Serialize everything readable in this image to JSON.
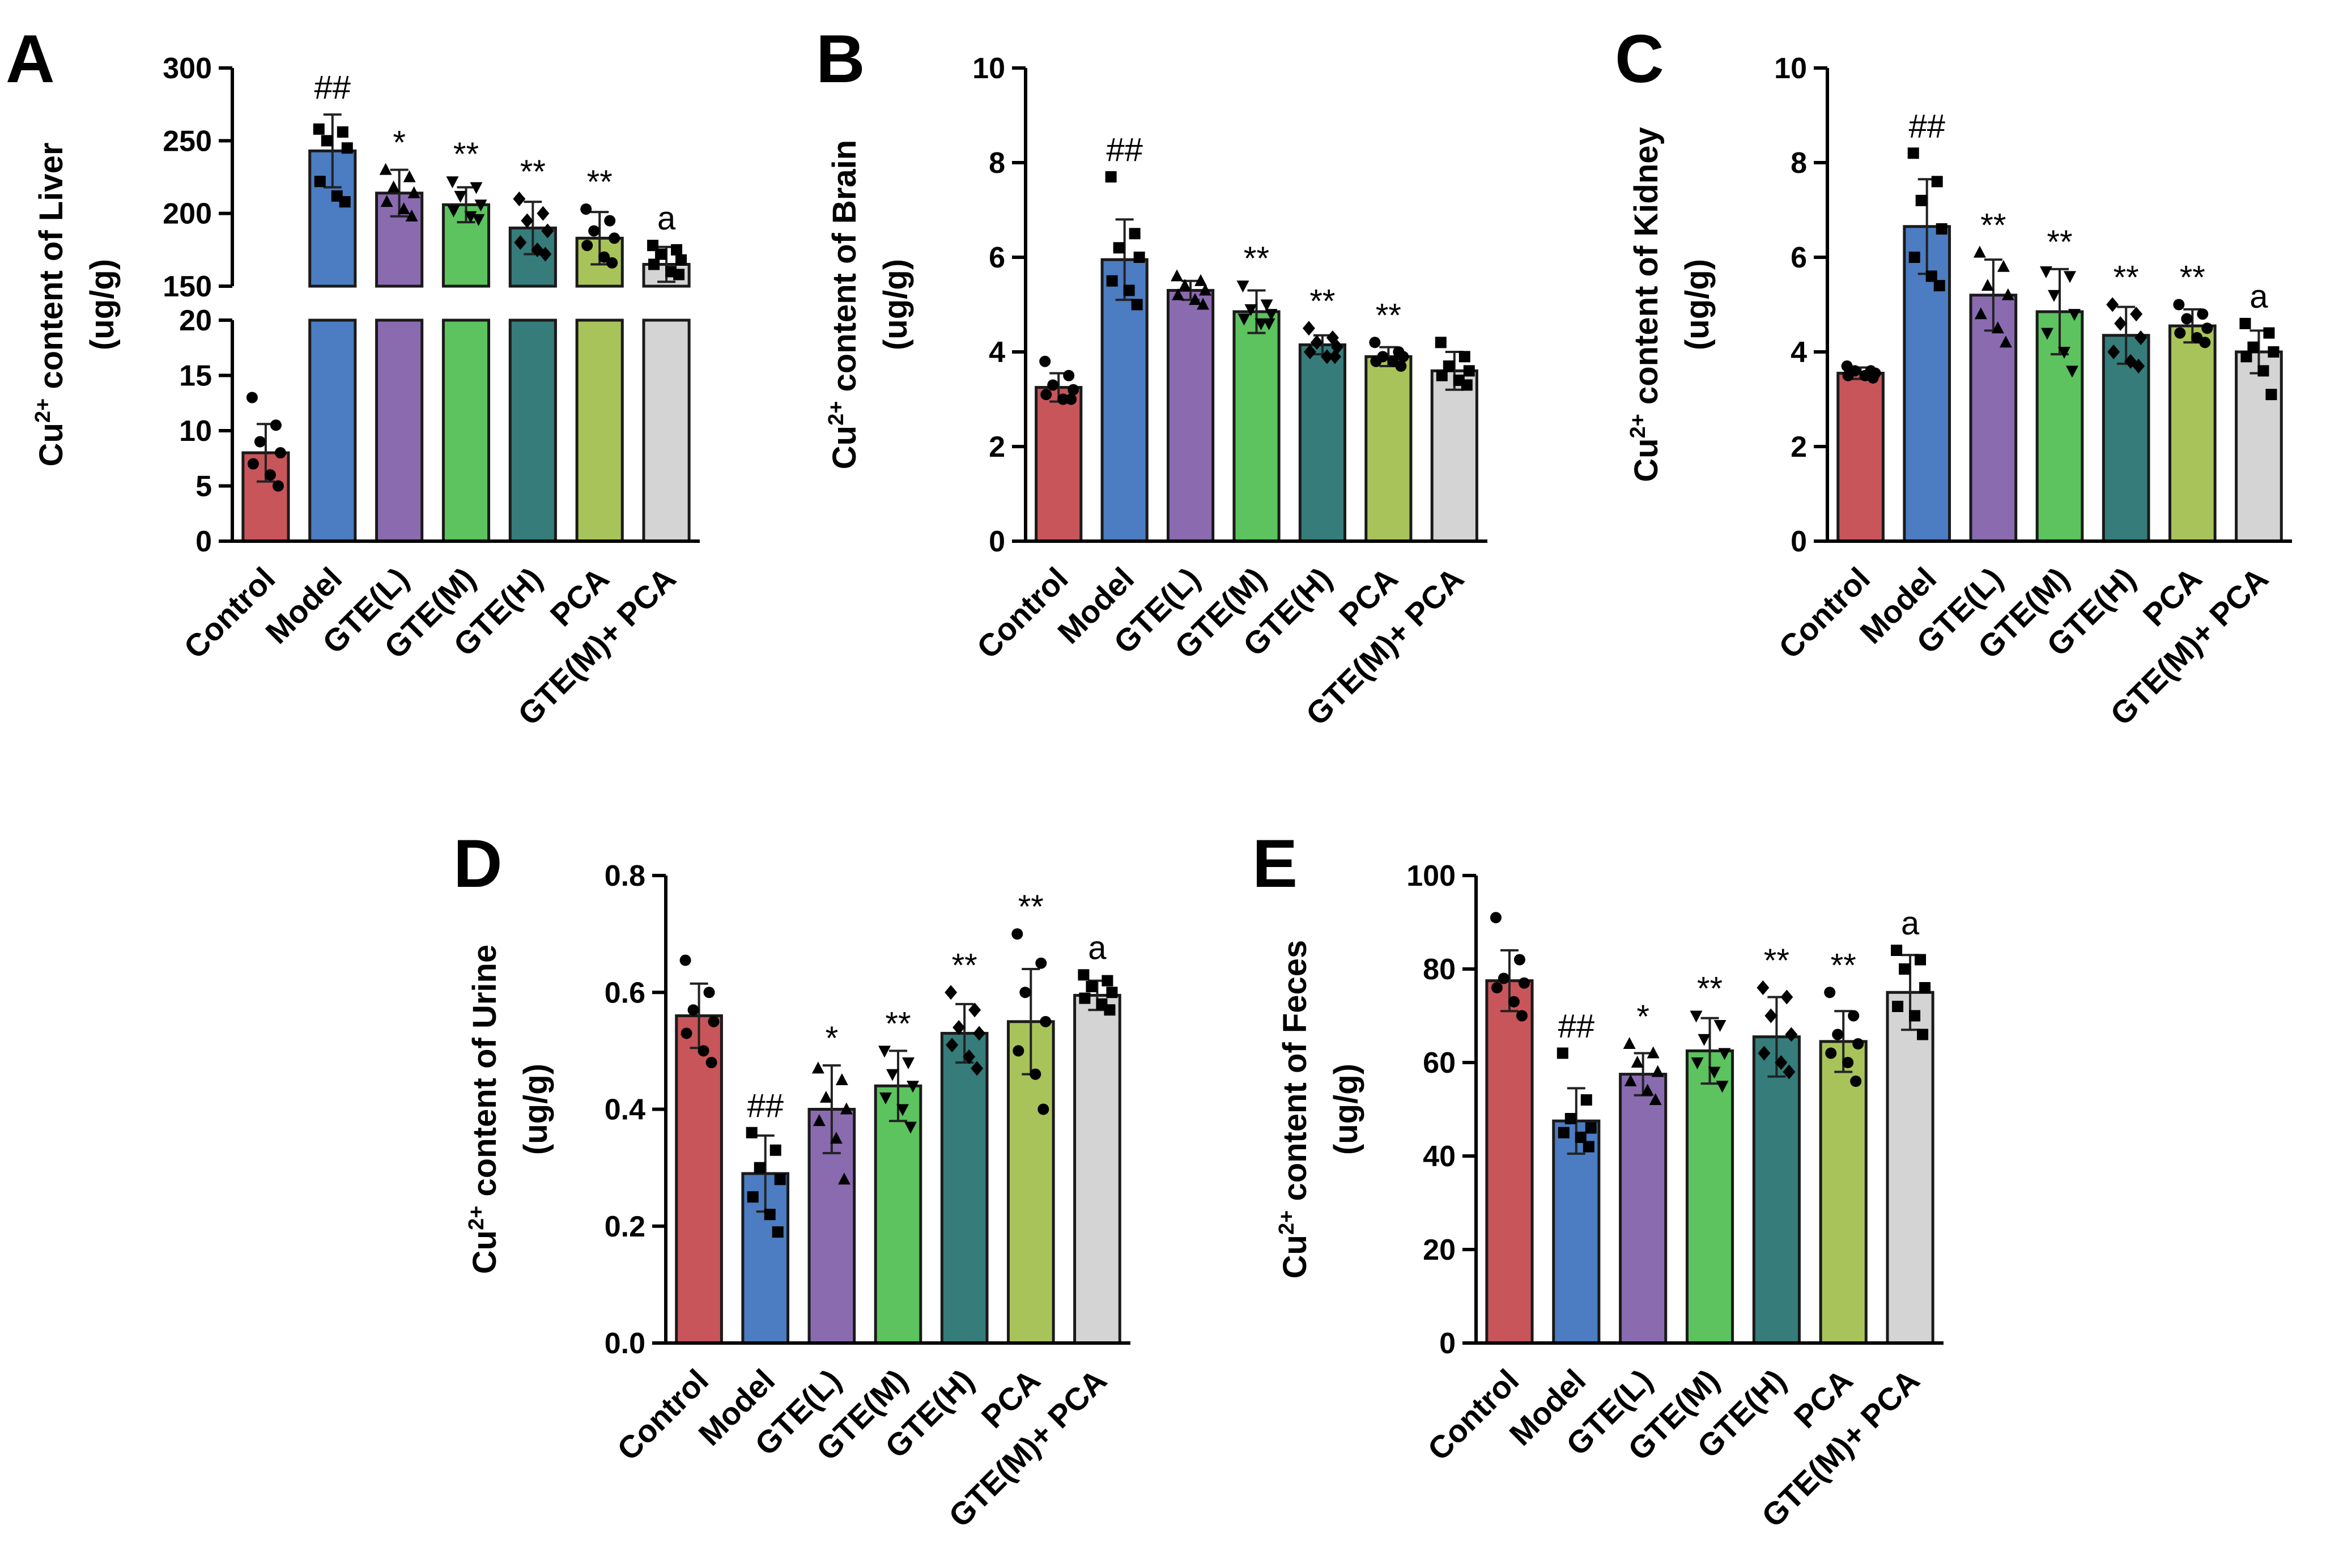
{
  "colors": {
    "Control": "#c8555a",
    "Model": "#4c7cc2",
    "GTE(L)": "#8a6bb0",
    "GTE(M)": "#5cc35e",
    "GTE(H)": "#357c7b",
    "PCA": "#a9c35b",
    "GTE(M)+ PCA": "#d4d4d4"
  },
  "chart_data": [
    {
      "panel": "A",
      "type": "bar",
      "ylabel_prefix": "Cu",
      "ylabel_sup": "2+",
      "ylabel_suffix": " content of Liver",
      "ylabel_unit": "(ug/g)",
      "axis_break": {
        "lower": [
          0,
          20
        ],
        "upper": [
          150,
          300
        ]
      },
      "lower_ticks": [
        0,
        5,
        10,
        15,
        20
      ],
      "upper_ticks": [
        150,
        200,
        250,
        300
      ],
      "tick_labels": [
        "0",
        "5",
        "10",
        "15",
        "20",
        "150",
        "200",
        "250",
        "300"
      ],
      "categories": [
        "Control",
        "Model",
        "GTE(L)",
        "GTE(M)",
        "GTE(H)",
        "PCA",
        "GTE(M)+ PCA"
      ],
      "values": [
        8,
        243,
        214,
        206,
        190,
        183,
        165
      ],
      "errors": [
        2.6,
        25,
        16,
        12,
        18,
        18,
        12
      ],
      "markers": [
        "circle",
        "square",
        "triangle",
        "triangle-down",
        "diamond",
        "circle",
        "square"
      ],
      "points": [
        [
          13,
          10.5,
          9,
          8,
          7,
          6,
          5
        ],
        [
          258,
          256,
          250,
          245,
          222,
          212,
          208
        ],
        [
          230,
          225,
          218,
          214,
          208,
          203,
          198
        ],
        [
          222,
          218,
          212,
          206,
          202,
          198,
          196
        ],
        [
          210,
          200,
          195,
          188,
          180,
          175,
          172
        ],
        [
          203,
          195,
          188,
          183,
          178,
          170,
          166
        ],
        [
          178,
          175,
          172,
          168,
          165,
          160,
          158
        ]
      ],
      "annotations": [
        "##",
        "*",
        "**",
        "**",
        "**",
        "a"
      ],
      "annotation_anchor": [
        1,
        2,
        3,
        4,
        5,
        6
      ]
    },
    {
      "panel": "B",
      "type": "bar",
      "ylabel_prefix": "Cu",
      "ylabel_sup": "2+",
      "ylabel_suffix": " content of Brain",
      "ylabel_unit": "(ug/g)",
      "ylim": [
        0,
        10
      ],
      "ticks": [
        0,
        2,
        4,
        6,
        8,
        10
      ],
      "tick_labels": [
        "0",
        "2",
        "4",
        "6",
        "8",
        "10"
      ],
      "categories": [
        "Control",
        "Model",
        "GTE(L)",
        "GTE(M)",
        "GTE(H)",
        "PCA",
        "GTE(M)+ PCA"
      ],
      "values": [
        3.25,
        5.95,
        5.3,
        4.85,
        4.15,
        3.9,
        3.6
      ],
      "errors": [
        0.3,
        0.85,
        0.2,
        0.45,
        0.2,
        0.2,
        0.4
      ],
      "markers": [
        "circle",
        "square",
        "triangle",
        "triangle-down",
        "diamond",
        "circle",
        "square"
      ],
      "points": [
        [
          3.8,
          3.5,
          3.3,
          3.2,
          3.1,
          3.0,
          3.0
        ],
        [
          7.7,
          6.5,
          6.2,
          6.0,
          5.5,
          5.3,
          5.0
        ],
        [
          5.6,
          5.5,
          5.4,
          5.3,
          5.2,
          5.1,
          5.0
        ],
        [
          5.4,
          5.0,
          4.9,
          4.8,
          4.7,
          4.6,
          4.6
        ],
        [
          4.5,
          4.3,
          4.2,
          4.1,
          4.0,
          3.9,
          3.9
        ],
        [
          4.2,
          4.0,
          3.9,
          3.9,
          3.8,
          3.8,
          3.7
        ],
        [
          4.2,
          3.9,
          3.7,
          3.6,
          3.5,
          3.4,
          3.3
        ]
      ],
      "annotations": [
        "##",
        "**",
        "**",
        "**"
      ],
      "annotation_anchor": [
        1,
        3,
        4,
        5
      ]
    },
    {
      "panel": "C",
      "type": "bar",
      "ylabel_prefix": "Cu",
      "ylabel_sup": "2+",
      "ylabel_suffix": " content of Kidney",
      "ylabel_unit": "(ug/g)",
      "ylim": [
        0,
        10
      ],
      "ticks": [
        0,
        2,
        4,
        6,
        8,
        10
      ],
      "tick_labels": [
        "0",
        "2",
        "4",
        "6",
        "8",
        "10"
      ],
      "categories": [
        "Control",
        "Model",
        "GTE(L)",
        "GTE(M)",
        "GTE(H)",
        "PCA",
        "GTE(M)+ PCA"
      ],
      "values": [
        3.55,
        6.65,
        5.2,
        4.85,
        4.35,
        4.55,
        4.0
      ],
      "errors": [
        0.12,
        1.0,
        0.75,
        0.9,
        0.6,
        0.35,
        0.45
      ],
      "markers": [
        "circle",
        "square",
        "triangle",
        "triangle-down",
        "diamond",
        "circle",
        "square"
      ],
      "points": [
        [
          3.7,
          3.6,
          3.6,
          3.55,
          3.5,
          3.5,
          3.45
        ],
        [
          8.2,
          7.6,
          7.2,
          6.6,
          6.0,
          5.6,
          5.4
        ],
        [
          6.1,
          5.8,
          5.4,
          5.2,
          4.8,
          4.5,
          4.2
        ],
        [
          5.7,
          5.6,
          5.2,
          4.8,
          4.4,
          4.0,
          3.6
        ],
        [
          5.0,
          4.8,
          4.6,
          4.3,
          4.0,
          3.8,
          3.7
        ],
        [
          5.0,
          4.8,
          4.7,
          4.5,
          4.4,
          4.3,
          4.2
        ],
        [
          4.6,
          4.4,
          4.1,
          4.0,
          3.9,
          3.6,
          3.1
        ]
      ],
      "annotations": [
        "##",
        "**",
        "**",
        "**",
        "**",
        "a"
      ],
      "annotation_anchor": [
        1,
        2,
        3,
        4,
        5,
        6
      ]
    },
    {
      "panel": "D",
      "type": "bar",
      "ylabel_prefix": "Cu",
      "ylabel_sup": "2+",
      "ylabel_suffix": " content of Urine",
      "ylabel_unit": "(ug/g)",
      "ylim": [
        0,
        0.8
      ],
      "ticks": [
        0,
        0.2,
        0.4,
        0.6,
        0.8
      ],
      "tick_labels": [
        "0.0",
        "0.2",
        "0.4",
        "0.6",
        "0.8"
      ],
      "categories": [
        "Control",
        "Model",
        "GTE(L)",
        "GTE(M)",
        "GTE(H)",
        "PCA",
        "GTE(M)+ PCA"
      ],
      "values": [
        0.56,
        0.29,
        0.4,
        0.44,
        0.53,
        0.55,
        0.595
      ],
      "errors": [
        0.055,
        0.065,
        0.075,
        0.06,
        0.05,
        0.09,
        0.025
      ],
      "markers": [
        "circle",
        "square",
        "triangle",
        "triangle-down",
        "diamond",
        "circle",
        "square"
      ],
      "points": [
        [
          0.655,
          0.6,
          0.57,
          0.55,
          0.53,
          0.5,
          0.48
        ],
        [
          0.36,
          0.33,
          0.3,
          0.28,
          0.25,
          0.22,
          0.19
        ],
        [
          0.47,
          0.45,
          0.42,
          0.4,
          0.38,
          0.35,
          0.28
        ],
        [
          0.5,
          0.48,
          0.46,
          0.44,
          0.42,
          0.4,
          0.37
        ],
        [
          0.6,
          0.57,
          0.54,
          0.53,
          0.51,
          0.49,
          0.47
        ],
        [
          0.7,
          0.65,
          0.6,
          0.55,
          0.5,
          0.46,
          0.4
        ],
        [
          0.63,
          0.62,
          0.61,
          0.6,
          0.59,
          0.58,
          0.57
        ]
      ],
      "annotations": [
        "##",
        "*",
        "**",
        "**",
        "**",
        "a"
      ],
      "annotation_anchor": [
        1,
        2,
        3,
        4,
        5,
        6
      ]
    },
    {
      "panel": "E",
      "type": "bar",
      "ylabel_prefix": "Cu",
      "ylabel_sup": "2+",
      "ylabel_suffix": " content of Feces",
      "ylabel_unit": "(ug/g)",
      "ylim": [
        0,
        100
      ],
      "ticks": [
        0,
        20,
        40,
        60,
        80,
        100
      ],
      "tick_labels": [
        "0",
        "20",
        "40",
        "60",
        "80",
        "100"
      ],
      "categories": [
        "Control",
        "Model",
        "GTE(L)",
        "GTE(M)",
        "GTE(H)",
        "PCA",
        "GTE(M)+ PCA"
      ],
      "values": [
        77.5,
        47.5,
        57.5,
        62.5,
        65.5,
        64.5,
        75
      ],
      "errors": [
        6.5,
        7,
        4.5,
        7,
        8.5,
        6.5,
        8
      ],
      "markers": [
        "circle",
        "square",
        "triangle",
        "triangle-down",
        "diamond",
        "circle",
        "square"
      ],
      "points": [
        [
          91,
          82,
          78,
          77,
          76,
          73,
          70
        ],
        [
          62,
          52,
          48,
          46,
          45,
          44,
          42
        ],
        [
          64,
          62,
          60,
          58,
          56,
          54,
          52
        ],
        [
          70,
          68,
          65,
          62,
          60,
          58,
          55
        ],
        [
          76,
          74,
          70,
          66,
          62,
          60,
          58
        ],
        [
          75,
          70,
          66,
          64,
          62,
          60,
          56
        ],
        [
          84,
          82,
          80,
          76,
          72,
          70,
          66
        ]
      ],
      "annotations": [
        "##",
        "*",
        "**",
        "**",
        "**",
        "a"
      ],
      "annotation_anchor": [
        1,
        2,
        3,
        4,
        5,
        6
      ]
    }
  ]
}
